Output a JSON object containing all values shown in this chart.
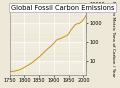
{
  "title": "Global Fossil Carbon Emissions",
  "ylabel": "Million Metric Tons of Carbon / Year",
  "xlim": [
    1750,
    2010
  ],
  "ylim_log": [
    2,
    12000
  ],
  "yticks": [
    10,
    100,
    1000,
    10000
  ],
  "ytick_labels": [
    "10",
    "100",
    "1000",
    "10000"
  ],
  "xticks": [
    1750,
    1800,
    1850,
    1900,
    1950,
    2000
  ],
  "line_color": "#c8960c",
  "bg_color": "#ede8d8",
  "title_fontsize": 4.8,
  "tick_fontsize": 3.5,
  "ylabel_fontsize": 3.2,
  "data_points": [
    [
      1751,
      3
    ],
    [
      1760,
      3
    ],
    [
      1770,
      3.2
    ],
    [
      1780,
      3.5
    ],
    [
      1790,
      4
    ],
    [
      1800,
      5
    ],
    [
      1810,
      6
    ],
    [
      1820,
      7.5
    ],
    [
      1830,
      9.5
    ],
    [
      1840,
      13
    ],
    [
      1850,
      17
    ],
    [
      1860,
      24
    ],
    [
      1870,
      34
    ],
    [
      1880,
      48
    ],
    [
      1890,
      63
    ],
    [
      1900,
      90
    ],
    [
      1910,
      135
    ],
    [
      1920,
      155
    ],
    [
      1930,
      180
    ],
    [
      1940,
      210
    ],
    [
      1950,
      280
    ],
    [
      1955,
      390
    ],
    [
      1960,
      490
    ],
    [
      1965,
      610
    ],
    [
      1970,
      790
    ],
    [
      1975,
      890
    ],
    [
      1980,
      950
    ],
    [
      1985,
      960
    ],
    [
      1990,
      1100
    ],
    [
      1995,
      1260
    ],
    [
      2000,
      1600
    ],
    [
      2005,
      2000
    ],
    [
      2008,
      2500
    ]
  ]
}
